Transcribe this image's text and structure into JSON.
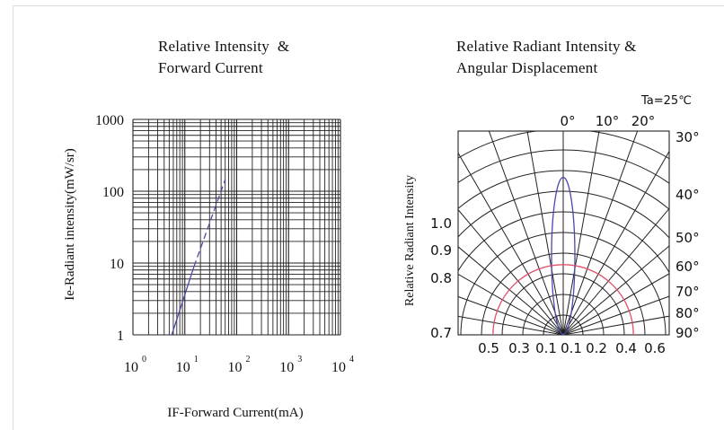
{
  "chart_data": [
    {
      "type": "line",
      "title_line1": "Relative Intensity  &",
      "title_line2": "Forward Current",
      "xlabel": "IF-Forward Current(mA)",
      "ylabel": "Ie-Radiant intensity(mW/sr)",
      "x_scale": "log",
      "y_scale": "log",
      "xlim": [
        1,
        10000
      ],
      "ylim": [
        1,
        1000
      ],
      "x_tick_base": "10",
      "x_tick_exponents": [
        "0",
        "1",
        "2",
        "3",
        "4"
      ],
      "y_tick_labels": [
        "1",
        "10",
        "100",
        "1000"
      ],
      "grid": true,
      "series": [
        {
          "style": "solid",
          "color": "#4a4aa8",
          "x": [
            5.6,
            15
          ],
          "y": [
            1,
            8.9
          ]
        },
        {
          "style": "dashed",
          "color": "#4a4aa8",
          "x": [
            15,
            60
          ],
          "y": [
            8.9,
            145
          ]
        }
      ]
    },
    {
      "type": "polar",
      "title_line1": "Relative Radiant Intensity &",
      "title_line2": "Angular Displacement",
      "condition_label": "Ta=25℃",
      "ylabel": "Relative Radiant Intensity",
      "top_angle_labels": [
        "0°",
        "10°",
        "20°"
      ],
      "right_angle_labels": [
        "30°",
        "40°",
        "50°",
        "60°",
        "70°",
        "80°",
        "90°"
      ],
      "left_scale_labels": [
        "1.0",
        "0.9",
        "0.8",
        "0.7"
      ],
      "bottom_scale_labels": [
        "0.5",
        "0.3",
        "0.1",
        "0.1",
        "0.2",
        "0.4",
        "0.6"
      ],
      "grid": true,
      "series": [
        {
          "name": "narrow-beam",
          "color": "#4a4aa8",
          "half_angle_deg": 6,
          "peak": 1.0
        },
        {
          "name": "reference-circle",
          "color": "#e0506a",
          "radius": 0.5
        }
      ]
    }
  ]
}
